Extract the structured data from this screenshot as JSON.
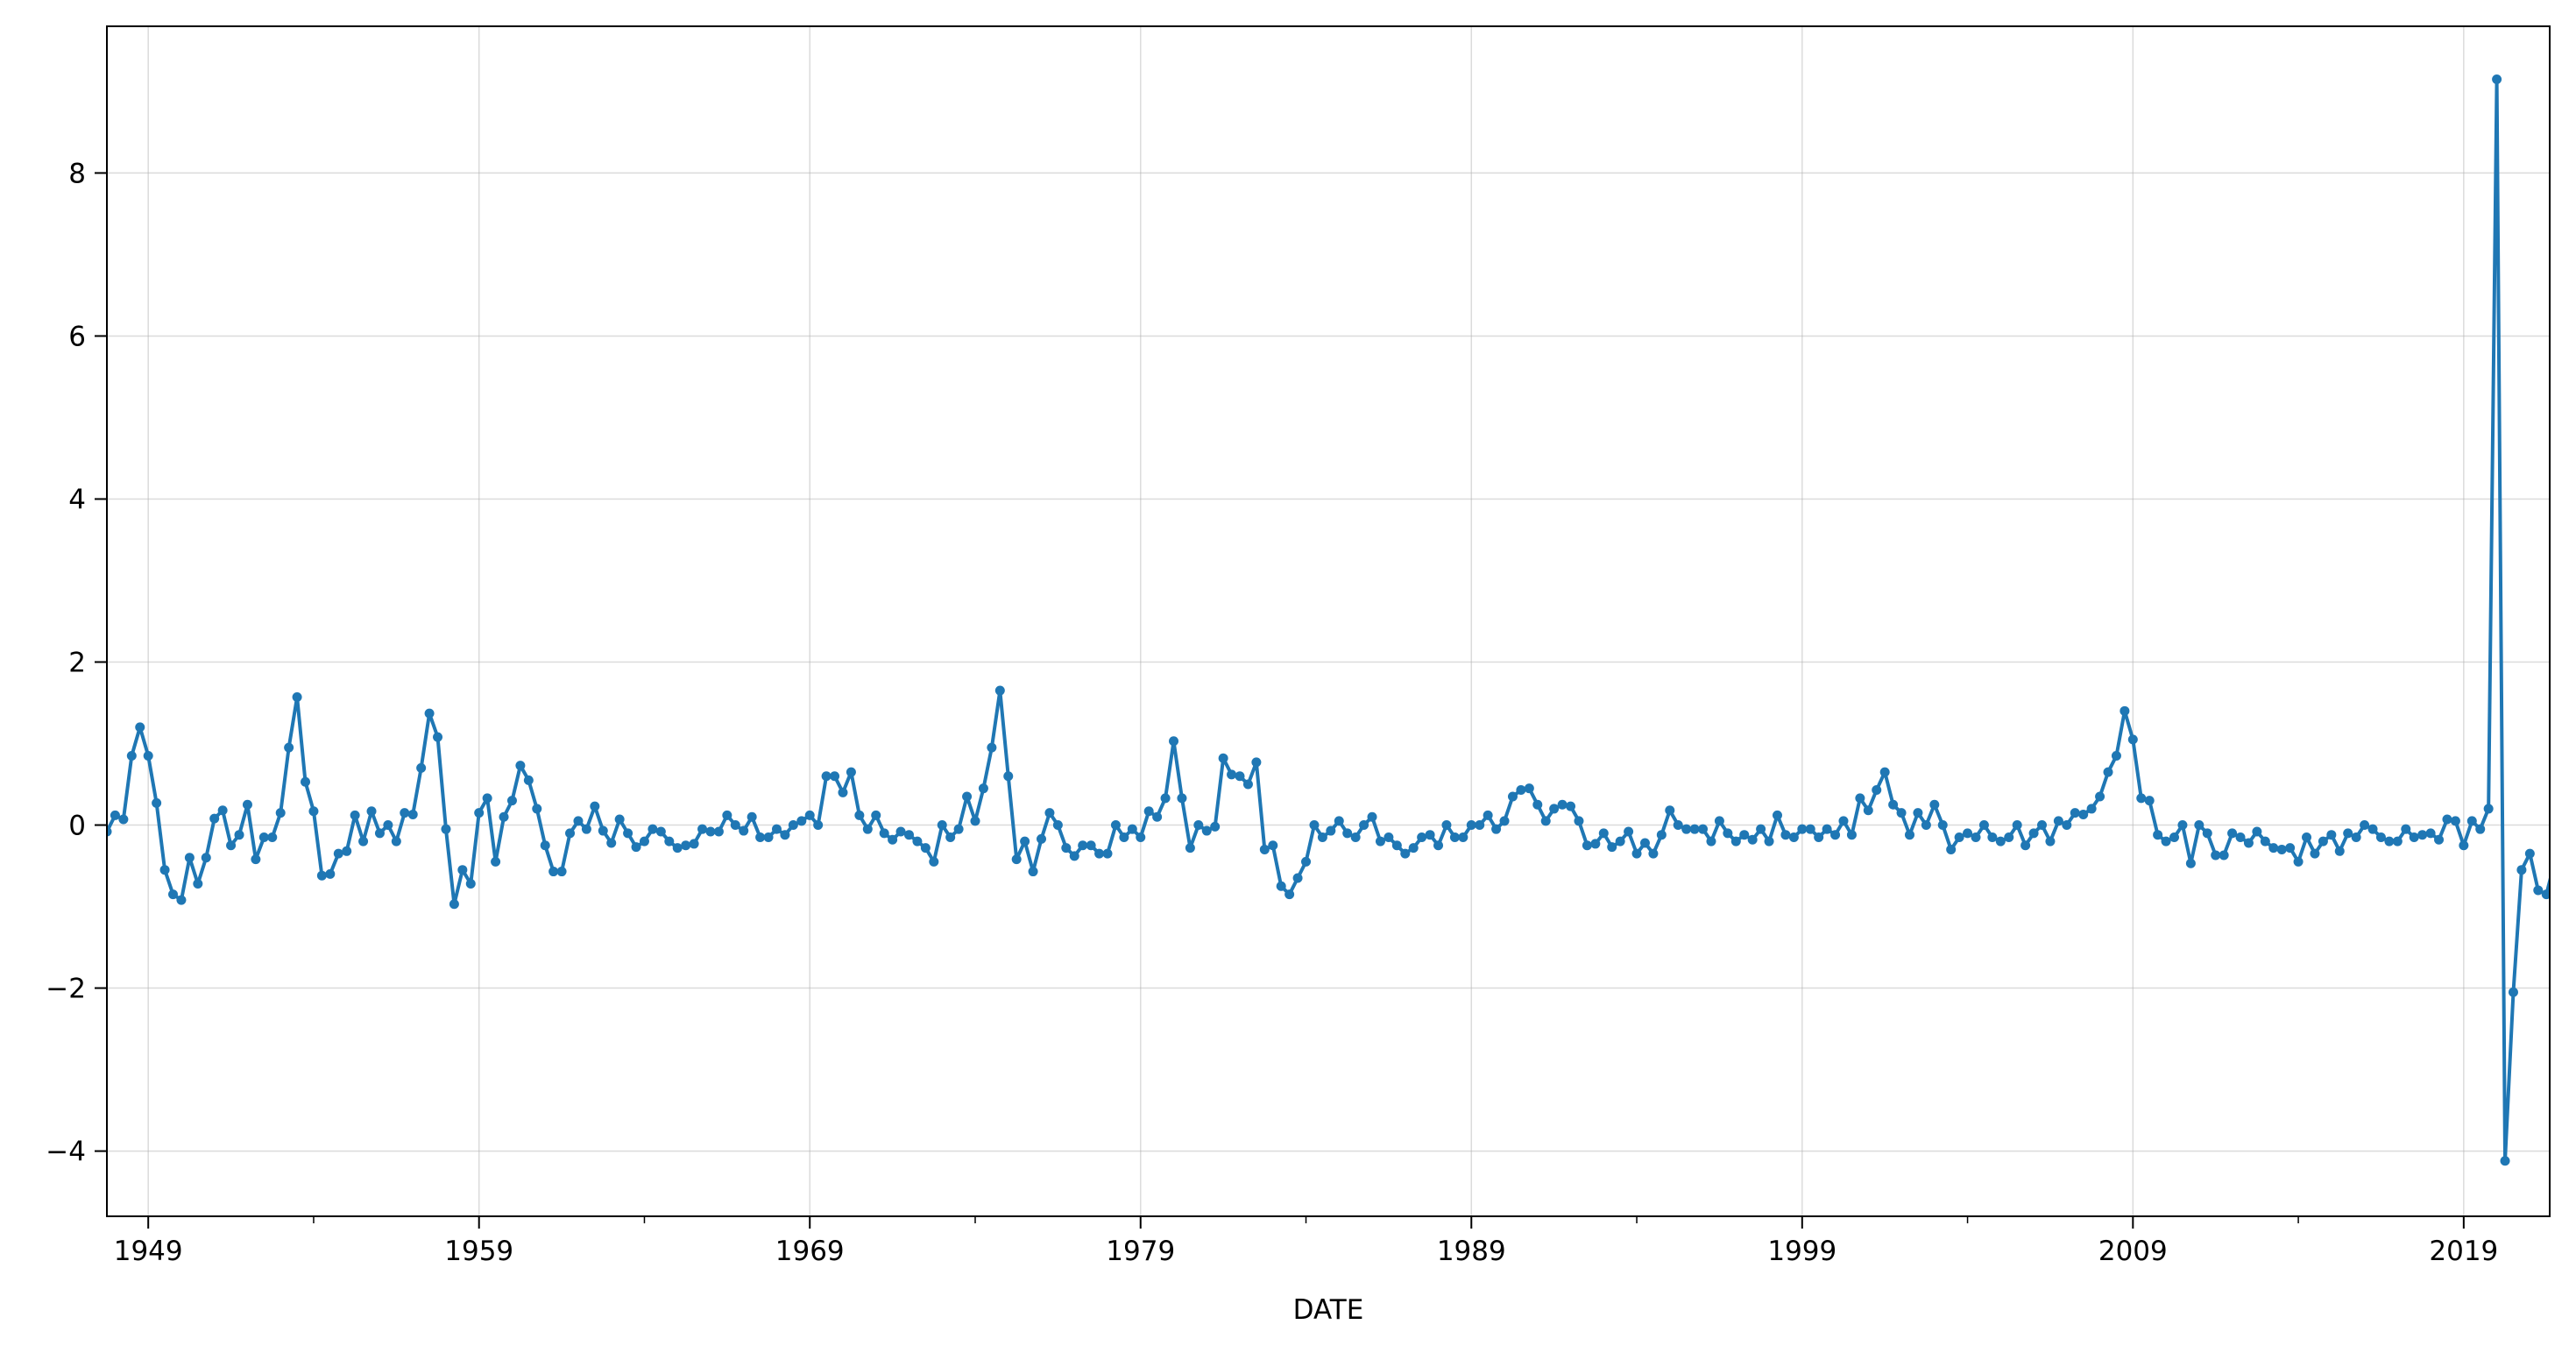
{
  "chart_data": {
    "type": "line",
    "title": "",
    "xlabel": "DATE",
    "ylabel": "",
    "xlim": [
      1947.75,
      2021.6
    ],
    "ylim": [
      -4.8,
      9.8
    ],
    "grid": true,
    "line_color": "#1f77b4",
    "x_tick_labels": [
      "1949",
      "1959",
      "1969",
      "1979",
      "1989",
      "1999",
      "2009",
      "2019"
    ],
    "x_major_ticks": [
      1949,
      1959,
      1969,
      1979,
      1989,
      1999,
      2009,
      2019
    ],
    "x_minor_ticks": [
      1954,
      1964,
      1974,
      1984,
      1994,
      2004,
      2014
    ],
    "y_tick_labels": [
      "−4",
      "−2",
      "0",
      "2",
      "4",
      "6",
      "8"
    ],
    "y_ticks": [
      -4,
      -2,
      0,
      2,
      4,
      6,
      8
    ],
    "x_start": 1947.75,
    "x_step": 0.25,
    "series": [
      {
        "values": [
          -0.08,
          0.12,
          0.07,
          0.85,
          1.2,
          0.85,
          0.27,
          -0.55,
          -0.85,
          -0.92,
          -0.4,
          -0.72,
          -0.4,
          0.08,
          0.18,
          -0.25,
          -0.12,
          0.25,
          -0.42,
          -0.15,
          -0.15,
          0.15,
          0.95,
          1.57,
          0.53,
          0.17,
          -0.62,
          -0.6,
          -0.35,
          -0.32,
          0.12,
          -0.2,
          0.17,
          -0.1,
          0.0,
          -0.2,
          0.15,
          0.13,
          0.7,
          1.37,
          1.08,
          -0.05,
          -0.97,
          -0.55,
          -0.72,
          0.15,
          0.33,
          -0.45,
          0.1,
          0.3,
          0.73,
          0.55,
          0.2,
          -0.25,
          -0.57,
          -0.57,
          -0.1,
          0.05,
          -0.05,
          0.23,
          -0.07,
          -0.22,
          0.07,
          -0.1,
          -0.27,
          -0.2,
          -0.05,
          -0.08,
          -0.2,
          -0.28,
          -0.25,
          -0.23,
          -0.05,
          -0.08,
          -0.08,
          0.12,
          0.0,
          -0.07,
          0.1,
          -0.15,
          -0.15,
          -0.05,
          -0.12,
          0.0,
          0.05,
          0.12,
          0.0,
          0.6,
          0.6,
          0.4,
          0.65,
          0.12,
          -0.05,
          0.12,
          -0.1,
          -0.18,
          -0.08,
          -0.12,
          -0.2,
          -0.28,
          -0.45,
          0.0,
          -0.15,
          -0.05,
          0.35,
          0.05,
          0.45,
          0.95,
          1.65,
          0.6,
          -0.42,
          -0.2,
          -0.57,
          -0.17,
          0.15,
          0.0,
          -0.28,
          -0.38,
          -0.25,
          -0.25,
          -0.35,
          -0.35,
          0.0,
          -0.15,
          -0.05,
          -0.15,
          0.17,
          0.1,
          0.33,
          1.03,
          0.33,
          -0.28,
          0.0,
          -0.07,
          -0.02,
          0.82,
          0.62,
          0.6,
          0.5,
          0.77,
          -0.3,
          -0.25,
          -0.75,
          -0.85,
          -0.65,
          -0.45,
          0.0,
          -0.15,
          -0.07,
          0.05,
          -0.1,
          -0.15,
          0.0,
          0.1,
          -0.2,
          -0.15,
          -0.25,
          -0.35,
          -0.28,
          -0.15,
          -0.12,
          -0.25,
          0.0,
          -0.15,
          -0.15,
          0.0,
          0.0,
          0.12,
          -0.05,
          0.05,
          0.35,
          0.43,
          0.45,
          0.25,
          0.05,
          0.2,
          0.25,
          0.23,
          0.05,
          -0.25,
          -0.23,
          -0.1,
          -0.27,
          -0.2,
          -0.08,
          -0.35,
          -0.22,
          -0.35,
          -0.12,
          0.18,
          0.0,
          -0.05,
          -0.05,
          -0.05,
          -0.2,
          0.05,
          -0.1,
          -0.2,
          -0.12,
          -0.18,
          -0.05,
          -0.2,
          0.12,
          -0.12,
          -0.15,
          -0.05,
          -0.05,
          -0.15,
          -0.05,
          -0.12,
          0.05,
          -0.12,
          0.33,
          0.18,
          0.43,
          0.65,
          0.25,
          0.15,
          -0.12,
          0.15,
          0.0,
          0.25,
          0.0,
          -0.3,
          -0.15,
          -0.1,
          -0.15,
          0.0,
          -0.15,
          -0.2,
          -0.15,
          0.0,
          -0.25,
          -0.1,
          0.0,
          -0.2,
          0.05,
          0.0,
          0.15,
          0.13,
          0.2,
          0.35,
          0.65,
          0.85,
          1.4,
          1.05,
          0.33,
          0.3,
          -0.12,
          -0.2,
          -0.15,
          0.0,
          -0.47,
          0.0,
          -0.1,
          -0.37,
          -0.37,
          -0.1,
          -0.15,
          -0.22,
          -0.08,
          -0.2,
          -0.28,
          -0.3,
          -0.28,
          -0.45,
          -0.15,
          -0.35,
          -0.2,
          -0.12,
          -0.32,
          -0.1,
          -0.15,
          0.0,
          -0.05,
          -0.15,
          -0.2,
          -0.2,
          -0.05,
          -0.15,
          -0.12,
          -0.1,
          -0.18,
          0.07,
          0.05,
          -0.25,
          0.05,
          -0.05,
          0.2,
          9.15,
          -4.12,
          -2.05,
          -0.55,
          -0.35,
          -0.8,
          -0.85,
          -0.45
        ]
      }
    ]
  }
}
